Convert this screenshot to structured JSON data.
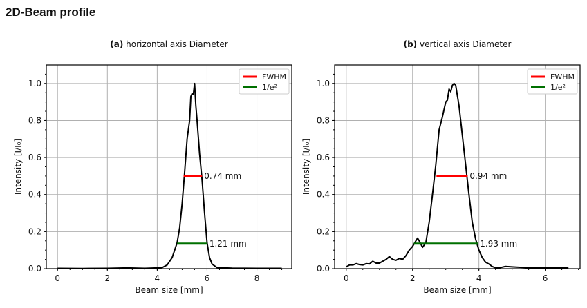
{
  "page_title": "2D-Beam profile",
  "chart_data": [
    {
      "type": "line",
      "title_prefix": "(a)",
      "title": "horizontal axis Diameter",
      "xlabel": "Beam size [mm]",
      "ylabel": "Intensity [I/I₀]",
      "xlim": [
        -0.45,
        9.4
      ],
      "ylim": [
        0,
        1.1
      ],
      "xticks": [
        0,
        2,
        4,
        6,
        8
      ],
      "yticks": [
        0.0,
        0.2,
        0.4,
        0.6,
        0.8,
        1.0
      ],
      "grid": true,
      "legend": {
        "placement": "top-right",
        "entries": [
          {
            "label": "FWHM",
            "color": "#ff0000"
          },
          {
            "label": "1/e²",
            "color": "#007000"
          }
        ]
      },
      "profile": {
        "color": "#000000",
        "x": [
          0,
          1,
          2,
          2.8,
          3.5,
          4.0,
          4.2,
          4.4,
          4.6,
          4.8,
          4.9,
          5.0,
          5.1,
          5.2,
          5.3,
          5.35,
          5.4,
          5.45,
          5.5,
          5.55,
          5.6,
          5.7,
          5.8,
          5.9,
          6.0,
          6.1,
          6.2,
          6.4,
          7,
          8,
          9
        ],
        "y": [
          0.002,
          0.001,
          0.002,
          0.004,
          0.002,
          0.004,
          0.006,
          0.02,
          0.06,
          0.14,
          0.22,
          0.35,
          0.52,
          0.7,
          0.8,
          0.93,
          0.945,
          0.94,
          1.0,
          0.88,
          0.8,
          0.62,
          0.48,
          0.3,
          0.14,
          0.06,
          0.025,
          0.006,
          0.003,
          0.002,
          0.002
        ]
      },
      "fwhm": {
        "y": 0.5,
        "x": [
          5.06,
          5.8
        ],
        "label": "0.74 mm"
      },
      "e2": {
        "y": 0.135,
        "x": [
          4.8,
          6.01
        ],
        "label": "1.21 mm"
      }
    },
    {
      "type": "line",
      "title_prefix": "(b)",
      "title": "vertical axis Diameter",
      "xlabel": "Beam size [mm]",
      "ylabel": "Intensity [I/I₀]",
      "xlim": [
        -0.35,
        7.05
      ],
      "ylim": [
        0,
        1.1
      ],
      "xticks": [
        0,
        2,
        4,
        6
      ],
      "yticks": [
        0.0,
        0.2,
        0.4,
        0.6,
        0.8,
        1.0
      ],
      "grid": true,
      "legend": {
        "placement": "top-right",
        "entries": [
          {
            "label": "FWHM",
            "color": "#ff0000"
          },
          {
            "label": "1/e²",
            "color": "#007000"
          }
        ]
      },
      "profile": {
        "color": "#000000",
        "x": [
          0,
          0.1,
          0.2,
          0.3,
          0.4,
          0.5,
          0.6,
          0.7,
          0.8,
          0.9,
          1.0,
          1.1,
          1.2,
          1.3,
          1.4,
          1.5,
          1.6,
          1.7,
          1.8,
          1.9,
          2.0,
          2.1,
          2.15,
          2.2,
          2.3,
          2.4,
          2.5,
          2.6,
          2.7,
          2.8,
          2.9,
          3.0,
          3.05,
          3.1,
          3.15,
          3.2,
          3.25,
          3.3,
          3.4,
          3.5,
          3.6,
          3.7,
          3.8,
          3.9,
          4.0,
          4.1,
          4.2,
          4.3,
          4.4,
          4.5,
          4.6,
          4.8,
          5.0,
          5.5,
          6.0,
          6.7
        ],
        "y": [
          0.01,
          0.02,
          0.02,
          0.027,
          0.022,
          0.02,
          0.027,
          0.025,
          0.04,
          0.03,
          0.03,
          0.04,
          0.05,
          0.065,
          0.05,
          0.045,
          0.055,
          0.05,
          0.07,
          0.1,
          0.12,
          0.15,
          0.165,
          0.15,
          0.115,
          0.14,
          0.25,
          0.4,
          0.56,
          0.75,
          0.82,
          0.9,
          0.91,
          0.97,
          0.955,
          0.99,
          1.0,
          0.99,
          0.88,
          0.72,
          0.56,
          0.4,
          0.25,
          0.16,
          0.1,
          0.06,
          0.035,
          0.025,
          0.012,
          0.005,
          0.004,
          0.012,
          0.01,
          0.005,
          0.004,
          0.004
        ]
      },
      "fwhm": {
        "y": 0.5,
        "x": [
          2.72,
          3.66
        ],
        "label": "0.94 mm"
      },
      "e2": {
        "y": 0.135,
        "x": [
          2.04,
          3.97
        ],
        "label": "1.93 mm"
      }
    }
  ]
}
